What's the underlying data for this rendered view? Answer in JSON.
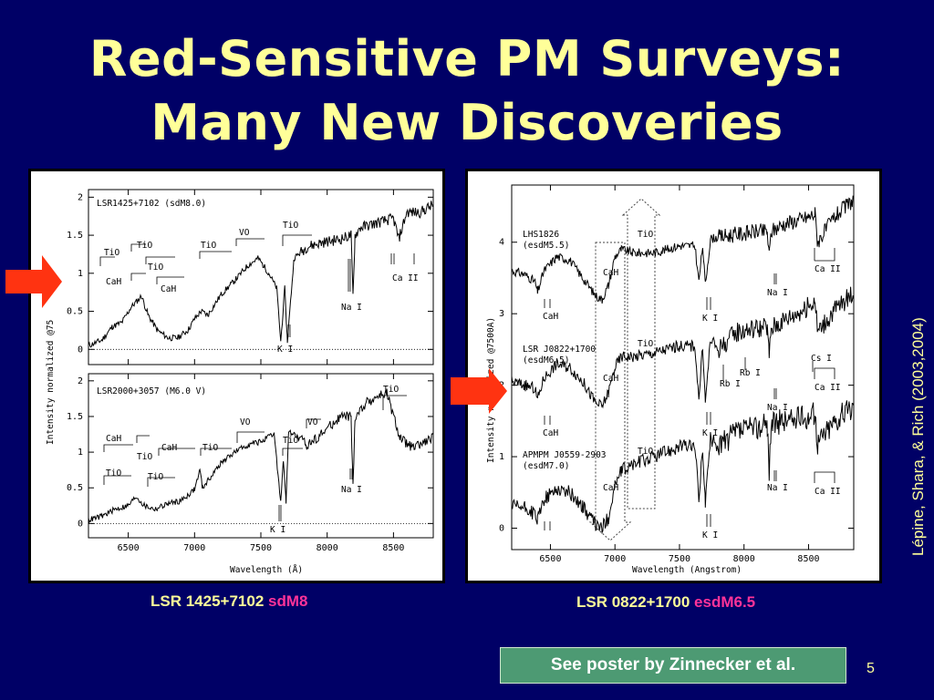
{
  "slide": {
    "title_line1": "Red-Sensitive PM Surveys:",
    "title_line2": "Many New Discoveries",
    "credit": "Lépine, Shara, & Rich (2003,2004)",
    "poster_button": "See poster by Zinnecker et al.",
    "page_number": "5",
    "caption_left": {
      "name": "LSR 1425+7102",
      "type": "sdM8"
    },
    "caption_right": {
      "name": "LSR 0822+1700",
      "type": "esdM6.5"
    },
    "colors": {
      "background": "#000066",
      "title": "#ffff99",
      "highlight": "#ff3399",
      "arrow": "#ff3311",
      "button": "#4d9a73"
    }
  },
  "chart_data": [
    {
      "type": "line",
      "panel": "left",
      "xlabel": "Wavelength (Å)",
      "ylabel": "Intensity normalized @75",
      "xlim": [
        6200,
        8800
      ],
      "x_ticks": [
        "6500",
        "7000",
        "7500",
        "8000",
        "8500"
      ],
      "subplots": [
        {
          "label": "LSR1425+7102 (sdM8.0)",
          "ylim": [
            -0.2,
            2.1
          ],
          "y_ticks": [
            "0",
            "0.5",
            "1",
            "1.5",
            "2"
          ],
          "x": [
            6200,
            6300,
            6380,
            6450,
            6520,
            6600,
            6650,
            6720,
            6800,
            6870,
            6950,
            7000,
            7050,
            7100,
            7200,
            7300,
            7400,
            7480,
            7560,
            7620,
            7650,
            7680,
            7700,
            7750,
            7850,
            7950,
            8100,
            8180,
            8195,
            8210,
            8250,
            8350,
            8500,
            8540,
            8600,
            8700,
            8800
          ],
          "y": [
            0.05,
            0.12,
            0.3,
            0.35,
            0.55,
            0.7,
            0.45,
            0.25,
            0.15,
            0.15,
            0.25,
            0.4,
            0.5,
            0.45,
            0.72,
            0.9,
            1.1,
            1.2,
            1.0,
            0.8,
            0.1,
            0.8,
            0.1,
            1.2,
            1.35,
            1.4,
            1.45,
            1.5,
            0.7,
            1.5,
            1.6,
            1.65,
            1.72,
            1.45,
            1.8,
            1.8,
            1.9
          ],
          "annotations": [
            "TiO",
            "TiO",
            "TiO",
            "TiO",
            "VO",
            "TiO",
            "CaH",
            "CaH",
            "Na I",
            "Ca II",
            "K I"
          ]
        },
        {
          "label": "LSR2000+3057 (M6.0 V)",
          "ylim": [
            -0.2,
            2.1
          ],
          "y_ticks": [
            "0",
            "0.5",
            "1",
            "1.5",
            "2"
          ],
          "x": [
            6200,
            6300,
            6400,
            6500,
            6560,
            6620,
            6700,
            6800,
            6900,
            7000,
            7040,
            7060,
            7200,
            7300,
            7400,
            7500,
            7600,
            7650,
            7670,
            7690,
            7710,
            7750,
            7850,
            7950,
            8100,
            8180,
            8195,
            8210,
            8300,
            8400,
            8450,
            8500,
            8550,
            8650,
            8800
          ],
          "y": [
            0.05,
            0.1,
            0.2,
            0.25,
            0.38,
            0.25,
            0.2,
            0.28,
            0.32,
            0.48,
            0.75,
            0.5,
            0.85,
            1.0,
            1.1,
            1.15,
            1.25,
            0.3,
            0.9,
            0.3,
            1.3,
            1.25,
            1.1,
            1.25,
            1.5,
            1.5,
            0.5,
            1.5,
            1.7,
            1.8,
            1.82,
            1.5,
            1.2,
            1.05,
            1.2
          ],
          "annotations": [
            "CaH",
            "TiO",
            "TiO",
            "TiO",
            "CaH",
            "TiO",
            "VO",
            "VO",
            "TiO",
            "TiO",
            "Na I",
            "K I"
          ]
        }
      ]
    },
    {
      "type": "line",
      "panel": "right",
      "xlabel": "Wavelength (Angstrom)",
      "ylabel": "Intensity normalized @7500A)",
      "xlim": [
        6200,
        8850
      ],
      "ylim": [
        -0.3,
        4.8
      ],
      "y_ticks": [
        "0",
        "1",
        "2",
        "3",
        "4"
      ],
      "x_ticks": [
        "6500",
        "7000",
        "7500",
        "8000",
        "8500"
      ],
      "series": [
        {
          "label": "LHS1826",
          "sublabel": "(esdM5.5)",
          "x": [
            6200,
            6300,
            6380,
            6400,
            6450,
            6550,
            6650,
            6750,
            6850,
            6900,
            6950,
            7000,
            7050,
            7150,
            7300,
            7500,
            7620,
            7650,
            7680,
            7700,
            7740,
            7900,
            8100,
            8180,
            8195,
            8210,
            8300,
            8500,
            8550,
            8570,
            8700,
            8850
          ],
          "y": [
            3.6,
            3.55,
            3.45,
            3.3,
            3.6,
            3.8,
            3.75,
            3.5,
            3.25,
            3.2,
            3.4,
            3.8,
            3.9,
            3.85,
            3.85,
            3.95,
            3.95,
            3.45,
            3.95,
            3.4,
            4.05,
            4.1,
            4.15,
            4.15,
            3.8,
            4.15,
            4.25,
            4.35,
            4.4,
            4.0,
            4.35,
            4.6
          ]
        },
        {
          "label": "LSR J0822+1700",
          "sublabel": "(esdM6.5)",
          "x": [
            6200,
            6300,
            6380,
            6400,
            6450,
            6550,
            6650,
            6750,
            6850,
            6900,
            6950,
            7000,
            7050,
            7150,
            7300,
            7500,
            7620,
            7650,
            7680,
            7700,
            7740,
            7800,
            7950,
            8100,
            8180,
            8195,
            8210,
            8300,
            8500,
            8550,
            8570,
            8700,
            8850
          ],
          "y": [
            2.05,
            2.0,
            1.95,
            1.8,
            2.1,
            2.3,
            2.25,
            2.05,
            1.75,
            1.7,
            1.9,
            2.25,
            2.4,
            2.4,
            2.45,
            2.55,
            2.55,
            1.8,
            2.55,
            1.75,
            2.65,
            2.5,
            2.75,
            2.8,
            2.8,
            2.4,
            2.8,
            2.9,
            3.1,
            3.2,
            2.75,
            3.05,
            3.3
          ]
        },
        {
          "label": "APMPM J0559-2903",
          "sublabel": "(esdM7.0)",
          "x": [
            6200,
            6300,
            6380,
            6400,
            6450,
            6550,
            6650,
            6750,
            6850,
            6900,
            6950,
            7000,
            7050,
            7150,
            7300,
            7500,
            7620,
            7650,
            7680,
            7700,
            7740,
            7800,
            7950,
            8100,
            8180,
            8195,
            8210,
            8300,
            8500,
            8550,
            8570,
            8700,
            8850
          ],
          "y": [
            0.3,
            0.28,
            0.2,
            0.1,
            0.4,
            0.55,
            0.5,
            0.3,
            0.05,
            0.0,
            0.15,
            0.6,
            0.8,
            0.9,
            1.0,
            1.15,
            1.15,
            0.4,
            1.15,
            0.35,
            1.25,
            1.15,
            1.35,
            1.4,
            1.45,
            0.8,
            1.45,
            1.5,
            1.55,
            1.6,
            1.2,
            1.5,
            1.7
          ]
        }
      ],
      "annotations": [
        "TiO",
        "CaH",
        "K I",
        "Na I",
        "Ca II",
        "TiO",
        "CaH",
        "K I",
        "Rb I",
        "Rb I",
        "Na I",
        "Cs I",
        "Ca II",
        "TiO",
        "CaH",
        "K I",
        "Na I",
        "Ca II",
        "CaH",
        "CaH"
      ]
    }
  ]
}
